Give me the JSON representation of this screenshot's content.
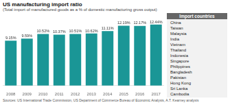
{
  "chart_data": {
    "type": "bar",
    "title": "US manufacturing import ratio",
    "subtitle": "(Total import of manufactured goods as a % of domestic manufacturing gross output)",
    "source": "Sources: US International Trade Commission, US Department of Commerce Bureau of Economic Analysis, A.T. Kearney analysis",
    "categories": [
      "2008",
      "2009",
      "2010",
      "2011",
      "2012",
      "2013",
      "2014",
      "2015",
      "2016",
      "2017"
    ],
    "values": [
      9.15,
      9.59,
      10.52,
      10.37,
      10.51,
      10.62,
      11.11,
      12.19,
      12.17,
      12.44
    ],
    "value_labels": [
      "9.15%",
      "9.59%",
      "10.52%",
      "10.37%",
      "10.51%",
      "10.62%",
      "11.11%",
      "12.19%",
      "12.17%",
      "12.44%"
    ],
    "data_labels": true,
    "color": "#1a9696",
    "ylim": [
      0,
      14.5
    ],
    "grid": false,
    "tick_labels": "x",
    "annotations": [
      {
        "title": "Import countries",
        "items": [
          "China",
          "Taiwan",
          "Malaysia",
          "India",
          "Vietnam",
          "Thailand",
          "Indonesia",
          "Singapore",
          "Philippines",
          "Bangladesh",
          "Pakistan",
          "Hong Kong",
          "Sri Lanka",
          "Cambodia"
        ]
      }
    ]
  }
}
